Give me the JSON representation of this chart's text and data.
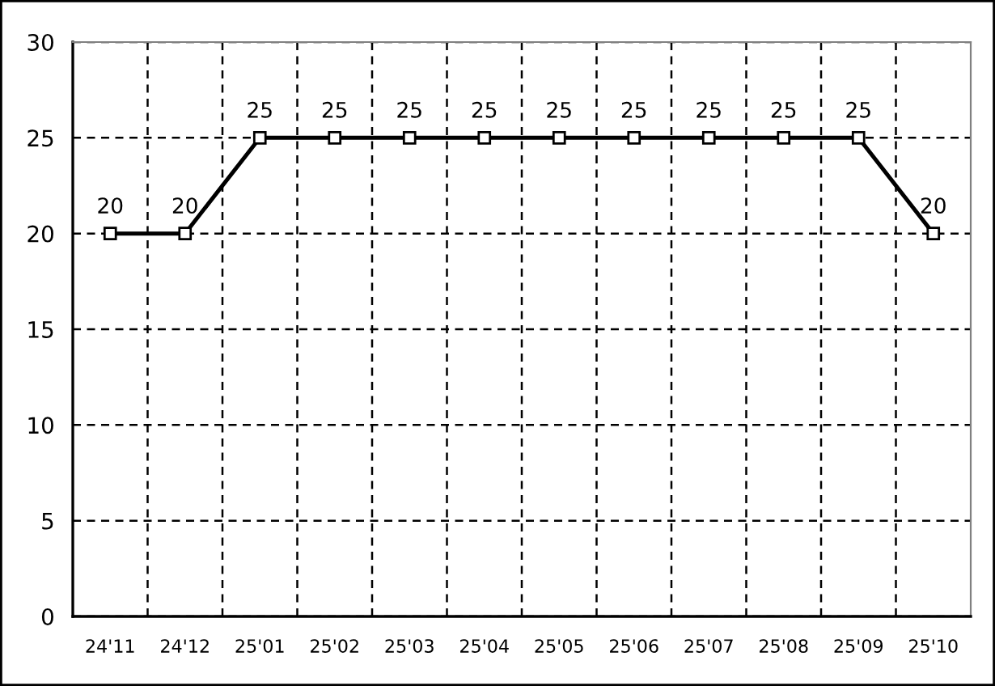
{
  "chart_data": {
    "type": "line",
    "categories": [
      "24'11",
      "24'12",
      "25'01",
      "25'02",
      "25'03",
      "25'04",
      "25'05",
      "25'06",
      "25'07",
      "25'08",
      "25'09",
      "25'10"
    ],
    "series": [
      {
        "color": "#000000",
        "values": [
          20,
          20,
          25,
          25,
          25,
          25,
          25,
          25,
          25,
          25,
          25,
          20
        ]
      }
    ],
    "ylim": [
      0,
      30
    ],
    "yticks": [
      0,
      5,
      10,
      15,
      20,
      25,
      30
    ],
    "grid": true,
    "marker": "square",
    "line_style": "solid",
    "data_labels": true
  }
}
